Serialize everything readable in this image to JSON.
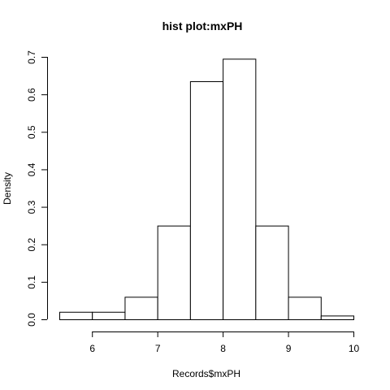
{
  "chart_data": {
    "type": "bar",
    "title": "hist plot:mxPH",
    "xlabel": "Records$mxPH",
    "ylabel": "Density",
    "bins": [
      {
        "from": 5.5,
        "to": 6.0,
        "density": 0.02
      },
      {
        "from": 6.0,
        "to": 6.5,
        "density": 0.02
      },
      {
        "from": 6.5,
        "to": 7.0,
        "density": 0.06
      },
      {
        "from": 7.0,
        "to": 7.5,
        "density": 0.25
      },
      {
        "from": 7.5,
        "to": 8.0,
        "density": 0.635
      },
      {
        "from": 8.0,
        "to": 8.5,
        "density": 0.695
      },
      {
        "from": 8.5,
        "to": 9.0,
        "density": 0.25
      },
      {
        "from": 9.0,
        "to": 9.5,
        "density": 0.06
      },
      {
        "from": 9.5,
        "to": 10.0,
        "density": 0.01
      }
    ],
    "xlim": [
      5.5,
      10.0
    ],
    "ylim": [
      0,
      0.7
    ],
    "xticks": [
      6,
      7,
      8,
      9,
      10
    ],
    "xtick_labels": [
      "6",
      "7",
      "8",
      "9",
      "10"
    ],
    "yticks": [
      0.0,
      0.1,
      0.2,
      0.3,
      0.4,
      0.5,
      0.6,
      0.7
    ],
    "ytick_labels": [
      "0.0",
      "0.1",
      "0.2",
      "0.3",
      "0.4",
      "0.5",
      "0.6",
      "0.7"
    ],
    "grid": false,
    "legend": "none"
  }
}
